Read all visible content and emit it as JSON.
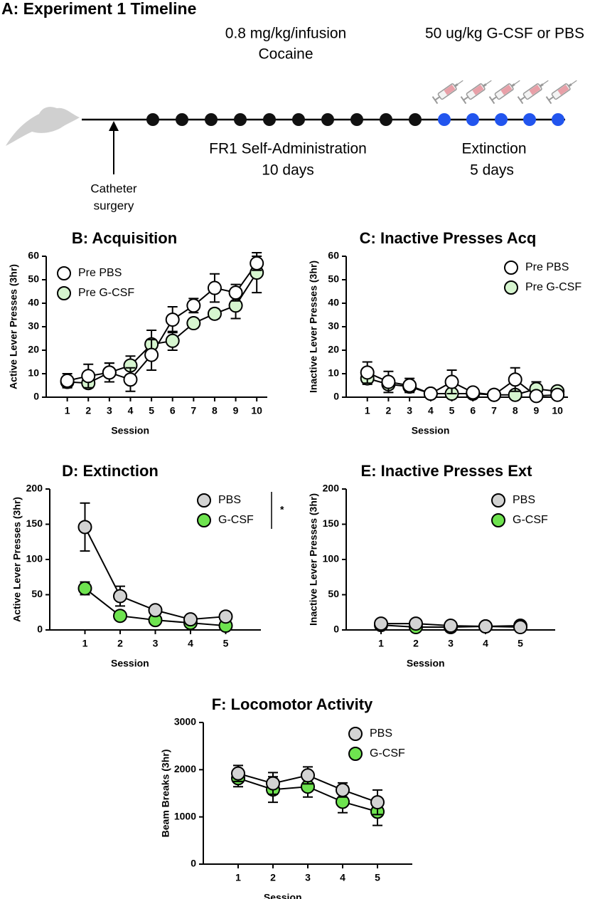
{
  "timeline": {
    "title": "A: Experiment 1 Timeline",
    "drug_dose": "0.8 mg/kg/infusion",
    "drug": "Cocaine",
    "treatment": "50 ug/kg G-CSF or PBS",
    "phase1": "FR1 Self-Administration",
    "phase1_days": "10 days",
    "phase2": "Extinction",
    "phase2_days": "5 days",
    "surgery_line1": "Catheter",
    "surgery_line2": "surgery"
  },
  "chart_data": [
    {
      "type": "line",
      "title": "B: Acquisition",
      "x_label": "Session",
      "y_label": "Active Lever Presses (3hr)",
      "x": [
        1,
        2,
        3,
        4,
        5,
        6,
        7,
        8,
        9,
        10
      ],
      "xlim": [
        0,
        10.5
      ],
      "xticks": [
        1,
        2,
        3,
        4,
        5,
        6,
        7,
        8,
        9,
        10
      ],
      "ylim": [
        0,
        60
      ],
      "yticks": [
        0,
        10,
        20,
        30,
        40,
        50,
        60
      ],
      "legend": "upper left",
      "series": [
        {
          "name": "Pre PBS",
          "color": "#ffffff",
          "values": [
            7,
            9,
            10.5,
            7.5,
            18,
            33,
            39,
            46.5,
            44.5,
            57
          ],
          "errors": [
            3,
            5,
            4,
            5,
            6.5,
            5.5,
            3,
            6,
            3.5,
            3
          ]
        },
        {
          "name": "Pre G-CSF",
          "color": "#d6f5cf",
          "values": [
            6.5,
            6,
            10.5,
            13.5,
            22.5,
            24,
            31.5,
            35.5,
            39,
            53
          ],
          "errors": [
            2,
            2,
            4,
            4,
            6,
            4,
            2,
            2,
            5.5,
            8.5
          ]
        }
      ]
    },
    {
      "type": "line",
      "title": "C: Inactive Presses Acq",
      "x_label": "Session",
      "y_label": "Inactive Lever Presses (3hr)",
      "x": [
        1,
        2,
        3,
        4,
        5,
        6,
        7,
        8,
        9,
        10
      ],
      "xlim": [
        0,
        10.5
      ],
      "xticks": [
        1,
        2,
        3,
        4,
        5,
        6,
        7,
        8,
        9,
        10
      ],
      "ylim": [
        0,
        60
      ],
      "yticks": [
        0,
        10,
        20,
        30,
        40,
        50,
        60
      ],
      "legend": "upper right",
      "series": [
        {
          "name": "Pre PBS",
          "color": "#ffffff",
          "values": [
            10.5,
            6.5,
            5,
            1.5,
            6.5,
            2,
            1,
            7.5,
            0.5,
            1
          ],
          "errors": [
            4.5,
            4.5,
            3,
            0.5,
            5,
            1,
            0.5,
            5,
            0.5,
            0.5
          ]
        },
        {
          "name": "Pre G-CSF",
          "color": "#d6f5cf",
          "values": [
            8,
            5.5,
            4.5,
            1.5,
            1.5,
            1.5,
            1,
            1,
            3.5,
            2.5
          ],
          "errors": [
            2.5,
            2,
            2,
            0.5,
            1.5,
            1,
            0.5,
            1,
            3,
            1
          ]
        }
      ]
    },
    {
      "type": "line",
      "title": "D: Extinction",
      "x_label": "Session",
      "y_label": "Active Lever Presses (3hr)",
      "annotation": "*",
      "x": [
        1,
        2,
        3,
        4,
        5
      ],
      "xlim": [
        0,
        6
      ],
      "xticks": [
        1,
        2,
        3,
        4,
        5
      ],
      "ylim": [
        0,
        200
      ],
      "yticks": [
        0,
        50,
        100,
        150,
        200
      ],
      "legend": "upper right",
      "series": [
        {
          "name": "PBS",
          "color": "#d3d3d3",
          "values": [
            146,
            48,
            28,
            15,
            19
          ],
          "errors": [
            34,
            14,
            3,
            2,
            2
          ]
        },
        {
          "name": "G-CSF",
          "color": "#6ee34f",
          "values": [
            59,
            20,
            14,
            10,
            6
          ],
          "errors": [
            9,
            3,
            2,
            2,
            2
          ]
        }
      ]
    },
    {
      "type": "line",
      "title": "E: Inactive Presses Ext",
      "x_label": "Session",
      "y_label": "Inactive Lever Presses (3hr)",
      "x": [
        1,
        2,
        3,
        4,
        5
      ],
      "xlim": [
        0,
        6
      ],
      "xticks": [
        1,
        2,
        3,
        4,
        5
      ],
      "ylim": [
        0,
        200
      ],
      "yticks": [
        0,
        50,
        100,
        150,
        200
      ],
      "legend": "upper right",
      "series": [
        {
          "name": "PBS",
          "color": "#d3d3d3",
          "values": [
            9,
            9,
            6,
            5,
            4
          ],
          "errors": [
            2,
            2,
            1,
            1,
            1
          ]
        },
        {
          "name": "G-CSF",
          "color": "#6ee34f",
          "values": [
            7,
            4,
            4,
            5,
            6
          ],
          "errors": [
            1,
            1,
            1,
            1,
            1
          ]
        }
      ]
    },
    {
      "type": "line",
      "title": "F: Locomotor Activity",
      "x_label": "Session",
      "y_label": "Beam Breaks (3hr)",
      "x": [
        1,
        2,
        3,
        4,
        5
      ],
      "xlim": [
        0,
        6
      ],
      "xticks": [
        1,
        2,
        3,
        4,
        5
      ],
      "ylim": [
        0,
        3000
      ],
      "yticks": [
        0,
        1000,
        2000,
        3000
      ],
      "legend": "upper right",
      "series": [
        {
          "name": "PBS",
          "color": "#d3d3d3",
          "values": [
            1920,
            1710,
            1880,
            1570,
            1310
          ],
          "errors": [
            170,
            230,
            180,
            150,
            260
          ]
        },
        {
          "name": "G-CSF",
          "color": "#6ee34f",
          "values": [
            1820,
            1580,
            1640,
            1320,
            1110
          ],
          "errors": [
            180,
            270,
            220,
            230,
            290
          ]
        }
      ]
    }
  ]
}
